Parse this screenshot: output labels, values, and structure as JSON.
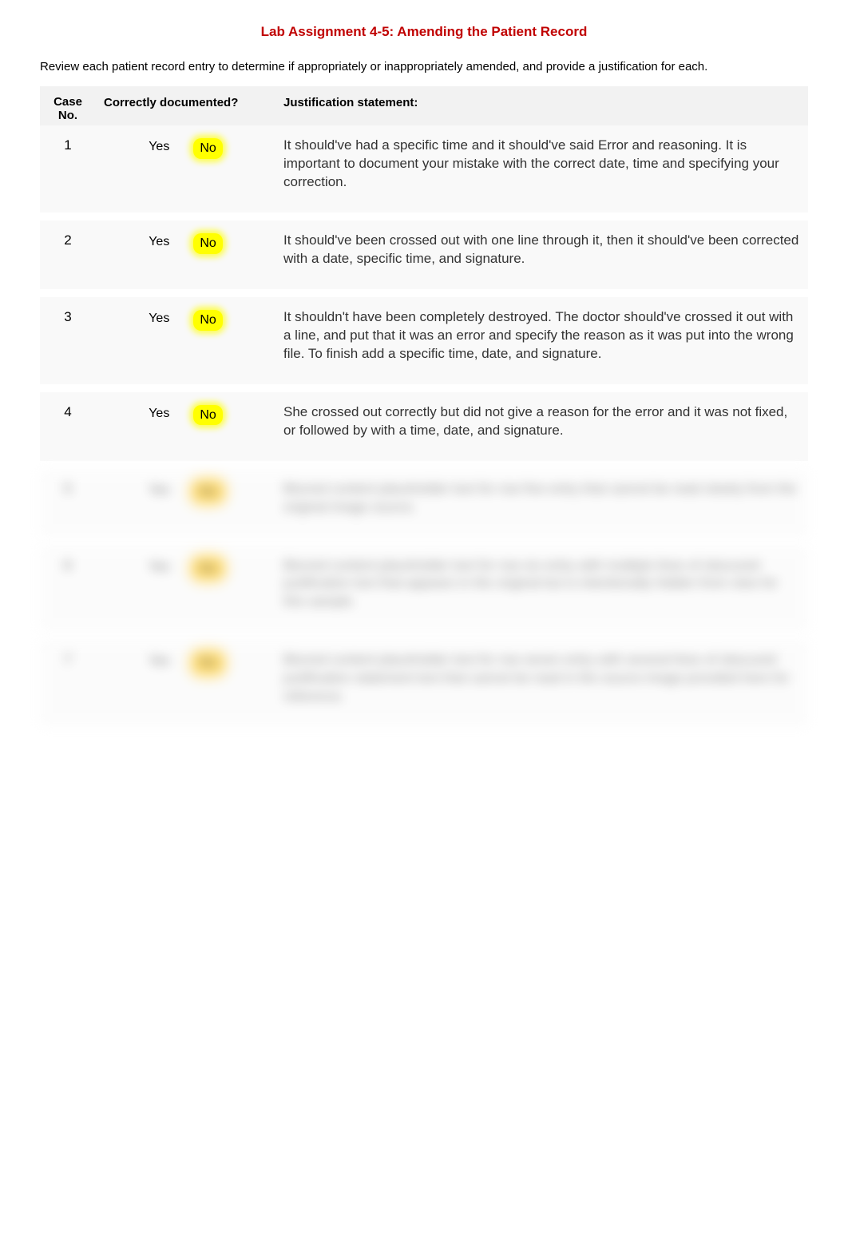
{
  "title": "Lab Assignment 4-5: Amending the Patient Record",
  "intro": "Review each patient record entry to determine if appropriately or inappropriately amended, and provide a justification for each.",
  "headers": {
    "case_no_line1": "Case",
    "case_no_line2": "No.",
    "correctly_documented": "Correctly documented?",
    "justification": "Justification statement:"
  },
  "labels": {
    "yes": "Yes",
    "no": "No"
  },
  "colors": {
    "title_color": "#c00000",
    "highlight_bg": "#ffff00",
    "row_bg": "#f9f9f9",
    "header_bg": "#f2f2f2",
    "text_color": "#333333",
    "blurred_highlight": "#ffc000"
  },
  "rows": [
    {
      "case_no": "1",
      "yes": "Yes",
      "no": "No",
      "justification": "It should've had a specific time and it should've said Error and reasoning. It is important to document your mistake with the correct date, time and specifying your correction."
    },
    {
      "case_no": "2",
      "yes": "Yes",
      "no": "No",
      "justification": "It should've been crossed out with one line through it, then it should've been corrected with a date, specific time, and signature."
    },
    {
      "case_no": "3",
      "yes": "Yes",
      "no": "No",
      "justification": "It shouldn't have been completely destroyed. The doctor should've crossed it out with a line, and put that it was an error and specify the reason as it was put into the wrong file. To finish add a specific time, date, and signature."
    },
    {
      "case_no": "4",
      "yes": "Yes",
      "no": "No",
      "justification": "She crossed out correctly but did not give a reason for the error and it was not fixed, or followed by with a time, date, and signature."
    }
  ],
  "blurred_rows": [
    {
      "case_no": "5",
      "yes": "Yes",
      "no": "No",
      "justification": "Blurred content placeholder text for row five entry that cannot be read clearly from the original image source."
    },
    {
      "case_no": "6",
      "yes": "Yes",
      "no": "No",
      "justification": "Blurred content placeholder text for row six entry with multiple lines of obscured justification text that appears in the original but is intentionally hidden from view for this sample."
    },
    {
      "case_no": "7",
      "yes": "Yes",
      "no": "No",
      "justification": "Blurred content placeholder text for row seven entry with several lines of obscured justification statement text that cannot be read in the source image provided here for reference."
    }
  ]
}
